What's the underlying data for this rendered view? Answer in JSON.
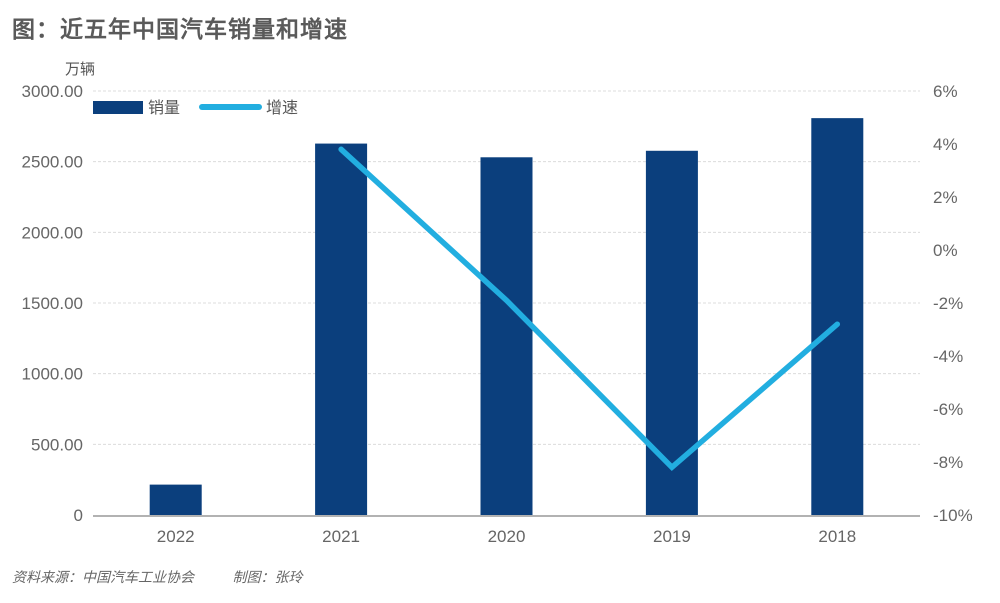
{
  "title": "图：近五年中国汽车销量和增速",
  "footer": {
    "source": "资料来源：中国汽车工业协会",
    "author": "制图：张玲"
  },
  "colors": {
    "bar": "#0b3f7d",
    "line": "#22aee0",
    "grid": "#dcdcdc",
    "axis": "#999999"
  },
  "chart_data": {
    "type": "bar+line",
    "title": "近五年中国汽车销量和增速",
    "categories": [
      "2022",
      "2021",
      "2020",
      "2019",
      "2018"
    ],
    "series": [
      {
        "name": "销量",
        "type": "bar",
        "axis": "left",
        "values": [
          215,
          2628,
          2531,
          2577,
          2808
        ]
      },
      {
        "name": "增速",
        "type": "line",
        "axis": "right",
        "values": [
          null,
          3.8,
          -1.9,
          -8.2,
          -2.8
        ]
      }
    ],
    "y_left": {
      "label": "万辆",
      "range": [
        0,
        3000
      ],
      "ticks": [
        0,
        500,
        1000,
        1500,
        2000,
        2500,
        3000
      ],
      "tick_labels": [
        "0",
        "500.00",
        "1000.00",
        "1500.00",
        "2000.00",
        "2500.00",
        "3000.00"
      ]
    },
    "y_right": {
      "label": "",
      "range": [
        -10,
        6
      ],
      "ticks": [
        6,
        4,
        2,
        0,
        -2,
        -4,
        -6,
        -8,
        -10
      ],
      "tick_labels": [
        "6%",
        "4%",
        "2%",
        "0%",
        "-2%",
        "-4%",
        "-6%",
        "-8%",
        "-10%"
      ]
    },
    "grid": true,
    "legend": {
      "placement": "top-left",
      "entries": [
        "销量",
        "增速"
      ]
    }
  }
}
